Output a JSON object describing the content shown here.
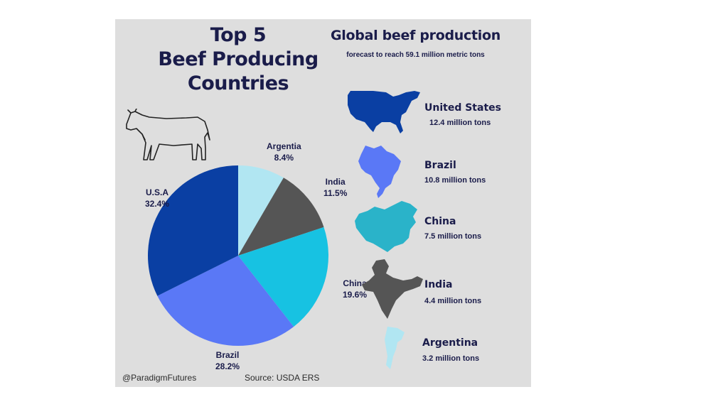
{
  "title_lines": [
    "Top 5",
    "Beef Producing",
    "Countries"
  ],
  "subtitle": "Global beef production",
  "subnote": "forecast to reach 59.1 million metric tons",
  "colors": {
    "usa": "#0a3fa3",
    "brazil": "#5a78f6",
    "china": "#17c2e2",
    "india": "#555555",
    "argentina": "#b1e6f2",
    "title": "#1a1c4a",
    "panel": "#dedede"
  },
  "chart_data": {
    "type": "pie",
    "title": "Top 5 Beef Producing Countries",
    "slices": [
      {
        "label": "Argentia",
        "value": 8.4,
        "display": "8.4%",
        "color": "#b1e6f2"
      },
      {
        "label": "India",
        "value": 11.5,
        "display": "11.5%",
        "color": "#555555"
      },
      {
        "label": "China",
        "value": 19.6,
        "display": "19.6%",
        "color": "#17c2e2"
      },
      {
        "label": "Brazil",
        "value": 28.2,
        "display": "28.2%",
        "color": "#5a78f6"
      },
      {
        "label": "U.S.A",
        "value": 32.4,
        "display": "32.4%",
        "color": "#0a3fa3"
      }
    ]
  },
  "countries": [
    {
      "name": "United States",
      "amount": "12.4 million tons",
      "icon": "usa-map-icon",
      "color": "#0a3fa3"
    },
    {
      "name": "Brazil",
      "amount": "10.8 million tons",
      "icon": "brazil-map-icon",
      "color": "#5a78f6"
    },
    {
      "name": "China",
      "amount": "7.5 million tons",
      "icon": "china-map-icon",
      "color": "#2ab3c9"
    },
    {
      "name": "India",
      "amount": "4.4 million tons",
      "icon": "india-map-icon",
      "color": "#555555"
    },
    {
      "name": "Argentina",
      "amount": "3.2 million tons",
      "icon": "argentina-map-icon",
      "color": "#b1e6f2"
    }
  ],
  "footer": {
    "handle": "@ParadigmFutures",
    "source": "Source: USDA  ERS"
  },
  "icons": {
    "cow": "cow-outline-icon"
  }
}
